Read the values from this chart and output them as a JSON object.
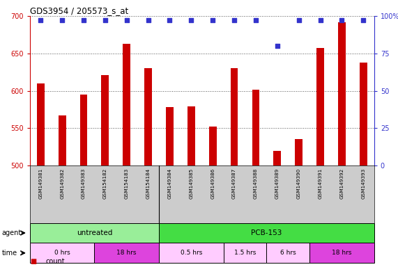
{
  "title": "GDS3954 / 205573_s_at",
  "samples": [
    "GSM149381",
    "GSM149382",
    "GSM149383",
    "GSM154182",
    "GSM154183",
    "GSM154184",
    "GSM149384",
    "GSM149385",
    "GSM149386",
    "GSM149387",
    "GSM149388",
    "GSM149389",
    "GSM149390",
    "GSM149391",
    "GSM149392",
    "GSM149393"
  ],
  "counts": [
    610,
    567,
    595,
    621,
    663,
    630,
    578,
    579,
    552,
    630,
    601,
    520,
    535,
    657,
    692,
    638
  ],
  "percentile_ranks": [
    97,
    97,
    97,
    97,
    97,
    97,
    97,
    97,
    97,
    97,
    97,
    80,
    97,
    97,
    97,
    97
  ],
  "bar_color": "#cc0000",
  "dot_color": "#3333cc",
  "ylim_left": [
    500,
    700
  ],
  "ylim_right": [
    0,
    100
  ],
  "yticks_left": [
    500,
    550,
    600,
    650,
    700
  ],
  "yticks_right": [
    0,
    25,
    50,
    75,
    100
  ],
  "agent_groups": [
    {
      "label": "untreated",
      "start": 0,
      "end": 6,
      "color": "#99ee99"
    },
    {
      "label": "PCB-153",
      "start": 6,
      "end": 16,
      "color": "#44dd44"
    }
  ],
  "time_groups": [
    {
      "label": "0 hrs",
      "start": 0,
      "end": 3,
      "color": "#ffccff"
    },
    {
      "label": "18 hrs",
      "start": 3,
      "end": 6,
      "color": "#dd44dd"
    },
    {
      "label": "0.5 hrs",
      "start": 6,
      "end": 9,
      "color": "#ffccff"
    },
    {
      "label": "1.5 hrs",
      "start": 9,
      "end": 11,
      "color": "#ffccff"
    },
    {
      "label": "6 hrs",
      "start": 11,
      "end": 13,
      "color": "#ffccff"
    },
    {
      "label": "18 hrs",
      "start": 13,
      "end": 16,
      "color": "#dd44dd"
    }
  ],
  "legend_count_color": "#cc0000",
  "legend_pct_color": "#3333cc",
  "bg_color": "#ffffff",
  "tick_area_color": "#cccccc"
}
